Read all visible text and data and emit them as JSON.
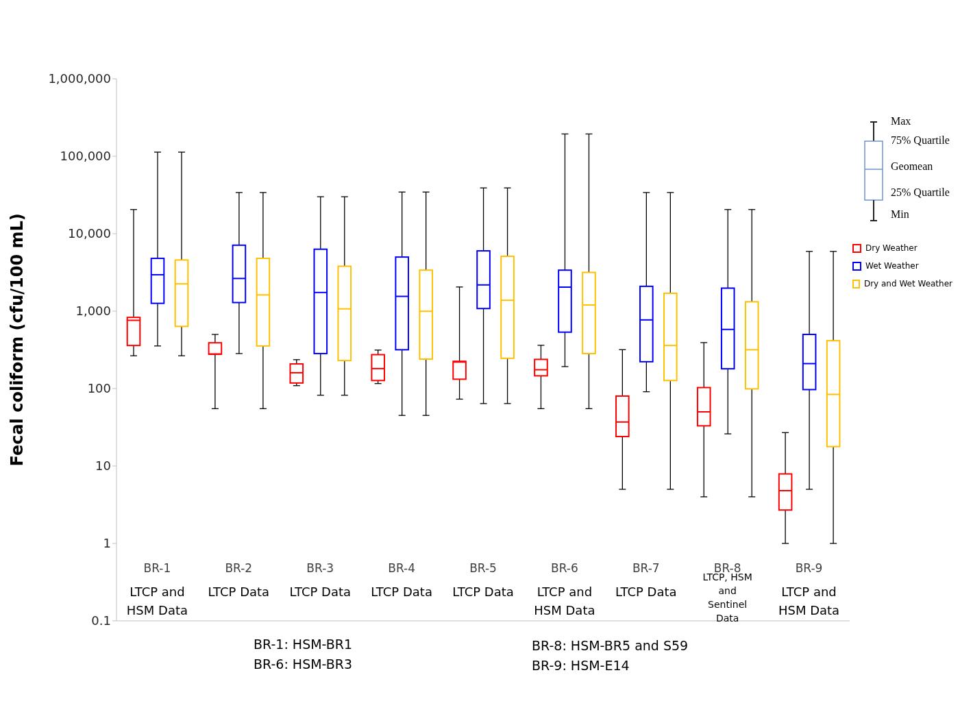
{
  "chart_data": {
    "type": "box",
    "ylabel": "Fecal coliform (cfu/100 mL)",
    "log": true,
    "ylim": [
      0.1,
      1000000
    ],
    "yticks": [
      0.1,
      1,
      10,
      100,
      {
        "value": 1000,
        "label": "1,000"
      },
      {
        "value": 10000,
        "label": "10,000"
      },
      {
        "value": 100000,
        "label": "100,000"
      },
      {
        "value": 1000000,
        "label": "1,000,000"
      }
    ],
    "legend": "right",
    "categories": [
      "BR-1",
      "BR-2",
      "BR-3",
      "BR-4",
      "BR-5",
      "BR-6",
      "BR-7",
      "BR-8",
      "BR-9"
    ],
    "series": [
      {
        "name": "Dry Weather",
        "color": "#ff0000",
        "boxes": [
          {
            "low": 265,
            "q1": 360,
            "median": 760,
            "q3": 830,
            "high": 20500
          },
          {
            "low": 55,
            "q1": 277,
            "median": 280,
            "q3": 390,
            "high": 500
          },
          {
            "low": 109,
            "q1": 118,
            "median": 160,
            "q3": 208,
            "high": 236
          },
          {
            "low": 116,
            "q1": 127,
            "median": 181,
            "q3": 274,
            "high": 314
          },
          {
            "low": 73,
            "q1": 132,
            "median": 220,
            "q3": 225,
            "high": 2050
          },
          {
            "low": 55,
            "q1": 146,
            "median": 175,
            "q3": 238,
            "high": 362
          },
          {
            "low": 5,
            "q1": 24,
            "median": 37,
            "q3": 80,
            "high": 318
          },
          {
            "low": 4,
            "q1": 33,
            "median": 50,
            "q3": 103,
            "high": 392
          },
          {
            "low": 1,
            "q1": 2.7,
            "median": 4.8,
            "q3": 7.9,
            "high": 27
          }
        ]
      },
      {
        "name": "Wet Weather",
        "color": "#0000ff",
        "boxes": [
          {
            "low": 355,
            "q1": 1260,
            "median": 2950,
            "q3": 4800,
            "high": 113000
          },
          {
            "low": 283,
            "q1": 1290,
            "median": 2640,
            "q3": 7100,
            "high": 34000
          },
          {
            "low": 82,
            "q1": 283,
            "median": 1740,
            "q3": 6300,
            "high": 30000
          },
          {
            "low": 45,
            "q1": 317,
            "median": 1550,
            "q3": 4990,
            "high": 34500
          },
          {
            "low": 64,
            "q1": 1080,
            "median": 2180,
            "q3": 6000,
            "high": 39000
          },
          {
            "low": 192,
            "q1": 535,
            "median": 2040,
            "q3": 3380,
            "high": 194000
          },
          {
            "low": 91,
            "q1": 222,
            "median": 770,
            "q3": 2090,
            "high": 34000
          },
          {
            "low": 26,
            "q1": 180,
            "median": 580,
            "q3": 1980,
            "high": 20500
          },
          {
            "low": 5,
            "q1": 97,
            "median": 210,
            "q3": 500,
            "high": 5900
          }
        ]
      },
      {
        "name": "Dry and Wet Weather",
        "color": "#ffc000",
        "boxes": [
          {
            "low": 265,
            "q1": 635,
            "median": 2250,
            "q3": 4570,
            "high": 113000
          },
          {
            "low": 55,
            "q1": 355,
            "median": 1620,
            "q3": 4800,
            "high": 34000
          },
          {
            "low": 82,
            "q1": 230,
            "median": 1070,
            "q3": 3800,
            "high": 30000
          },
          {
            "low": 45,
            "q1": 240,
            "median": 995,
            "q3": 3380,
            "high": 34500
          },
          {
            "low": 64,
            "q1": 246,
            "median": 1380,
            "q3": 5100,
            "high": 39000
          },
          {
            "low": 55,
            "q1": 283,
            "median": 1200,
            "q3": 3160,
            "high": 194000
          },
          {
            "low": 5,
            "q1": 127,
            "median": 360,
            "q3": 1700,
            "high": 34000
          },
          {
            "low": 4,
            "q1": 99,
            "median": 317,
            "q3": 1320,
            "high": 20500
          },
          {
            "low": 1,
            "q1": 17.8,
            "median": 84,
            "q3": 415,
            "high": 5900
          }
        ]
      }
    ],
    "annotations": [
      "Max",
      "75% Quartile",
      "Geomean",
      "25% Quartile",
      "Min",
      "LTCP and HSM  Data",
      "LTCP Data",
      "LTCP Data",
      "LTCP Data",
      "LTCP Data",
      "LTCP and HSM Data",
      "LTCP Data",
      "LTCP, HSM and Sentinel Data",
      "LTCP and HSM Data",
      "BR-1: HSM-BR1",
      "BR-6: HSM-BR3",
      "BR-8: HSM-BR5 and S59",
      "BR-9: HSM-E14"
    ]
  }
}
